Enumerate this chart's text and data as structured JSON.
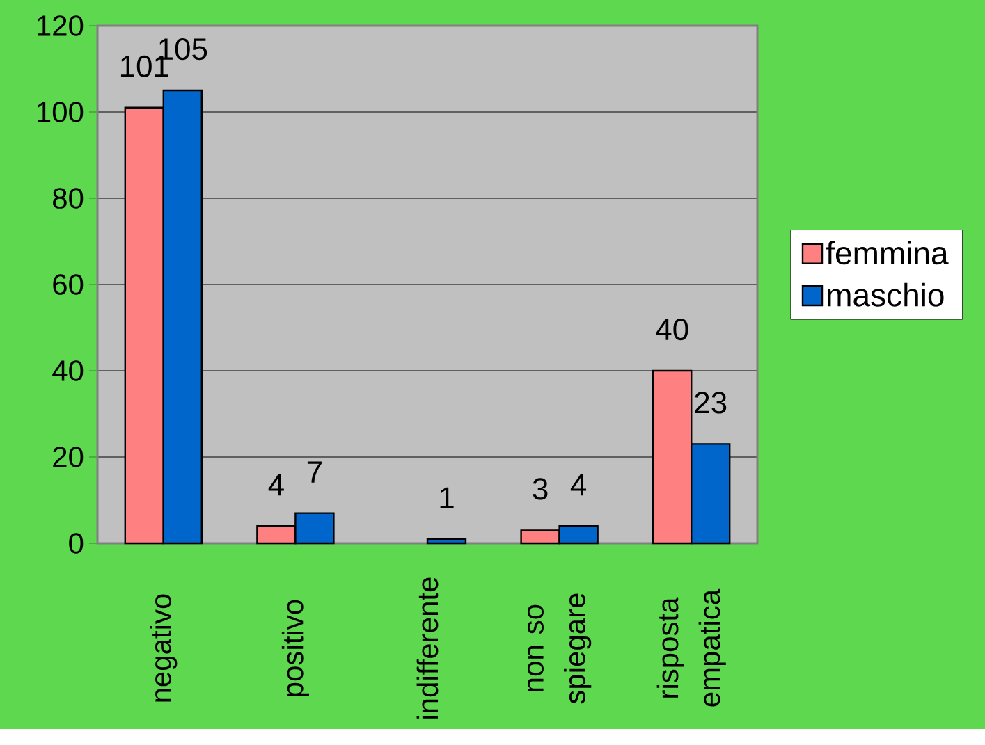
{
  "chart_data": {
    "type": "bar",
    "categories": [
      "negativo",
      "positivo",
      "indifferente",
      "non so spiegare",
      "risposta empatica"
    ],
    "series": [
      {
        "name": "femmina",
        "color": "#ff8080",
        "values": [
          101,
          4,
          0,
          3,
          40
        ],
        "value_labels": [
          "101",
          "4",
          null,
          "3",
          "40"
        ]
      },
      {
        "name": "maschio",
        "color": "#0066cc",
        "values": [
          105,
          7,
          1,
          4,
          23
        ],
        "value_labels": [
          "105",
          "7",
          "1",
          "4",
          "23"
        ]
      }
    ],
    "ylim": [
      0,
      120
    ],
    "yticks": [
      0,
      20,
      40,
      60,
      80,
      100,
      120
    ],
    "grid": "y",
    "legend": "right"
  }
}
